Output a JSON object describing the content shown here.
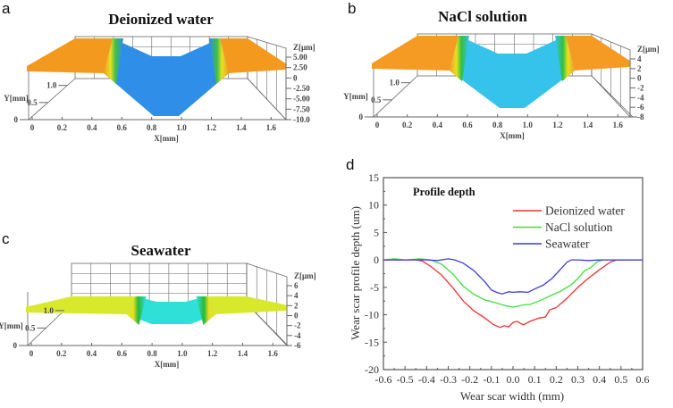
{
  "panels": {
    "a": {
      "letter": "a",
      "title": "Deionized water",
      "z_label": "Z[µm]",
      "z_ticks": [
        "5.00",
        "2.50",
        "0",
        "-2.50",
        "-5.00",
        "-7.50",
        "-10.0"
      ],
      "y_label": "Y[mm]",
      "y_ticks": [
        "0",
        "0.5",
        "1.0"
      ],
      "x_label": "X[mm]",
      "x_ticks": [
        "0",
        "0.2",
        "0.4",
        "0.6",
        "0.8",
        "1.0",
        "1.2",
        "1.4",
        "1.6"
      ],
      "surface_colors": {
        "top": "#f39a1e",
        "wall": "#3fbf4a",
        "bottom": "#2f8ee8"
      }
    },
    "b": {
      "letter": "b",
      "title": "NaCl solution",
      "z_label": "Z[µm]",
      "z_ticks": [
        "4",
        "2",
        "0",
        "-2",
        "-4",
        "-6",
        "-8"
      ],
      "y_label": "Y[mm]",
      "y_ticks": [
        "0",
        "0.5",
        "1.0"
      ],
      "x_label": "X[mm]",
      "x_ticks": [
        "0",
        "0.2",
        "0.4",
        "0.6",
        "0.8",
        "1.0",
        "1.2",
        "1.4",
        "1.6"
      ],
      "surface_colors": {
        "top": "#f59a22",
        "wall": "#32c040",
        "bottom": "#35c3ec"
      }
    },
    "c": {
      "letter": "c",
      "title": "Seawater",
      "z_label": "Z[µm]",
      "z_ticks": [
        "6",
        "4",
        "2",
        "0",
        "-2",
        "-4",
        "-6"
      ],
      "y_label": "Y[mm]",
      "y_ticks": [
        "0",
        "0.5",
        "1.0"
      ],
      "x_label": "X[mm]",
      "x_ticks": [
        "0",
        "0.2",
        "0.4",
        "0.6",
        "0.8",
        "1.0",
        "1.2",
        "1.4",
        "1.6"
      ],
      "surface_colors": {
        "top": "#d8e82a",
        "wall": "#28b83a",
        "bottom": "#2fe0d8"
      }
    },
    "d": {
      "letter": "d"
    }
  },
  "chart_data": {
    "type": "line",
    "title": "",
    "annotation": "Profile depth",
    "xlabel": "Wear scar width (mm)",
    "ylabel": "Wear scar profile depth (um)",
    "xlim": [
      -0.6,
      0.6
    ],
    "ylim": [
      -20,
      15
    ],
    "x_ticks": [
      "-0.6",
      "-0.5",
      "-0.4",
      "-0.3",
      "-0.2",
      "-0.1",
      "0.0",
      "0.1",
      "0.2",
      "0.3",
      "0.4",
      "0.5",
      "0.6"
    ],
    "y_ticks": [
      "15",
      "10",
      "5",
      "0",
      "-5",
      "-10",
      "-15",
      "-20"
    ],
    "legend_position": "top-right",
    "grid": false,
    "series": [
      {
        "name": "Deionized water",
        "color": "#f03030",
        "x": [
          -0.6,
          -0.5,
          -0.45,
          -0.42,
          -0.38,
          -0.33,
          -0.28,
          -0.23,
          -0.18,
          -0.13,
          -0.09,
          -0.06,
          -0.04,
          -0.02,
          0.0,
          0.02,
          0.04,
          0.05,
          0.08,
          0.12,
          0.15,
          0.17,
          0.2,
          0.25,
          0.3,
          0.35,
          0.4,
          0.45,
          0.48,
          0.5,
          0.6
        ],
        "y": [
          0,
          0,
          0,
          -0.2,
          -1.2,
          -2.8,
          -5.0,
          -7.5,
          -9.3,
          -10.6,
          -11.8,
          -12.3,
          -12.0,
          -12.2,
          -11.4,
          -11.2,
          -11.7,
          -11.8,
          -11.2,
          -10.6,
          -10.4,
          -9.1,
          -8.7,
          -7.0,
          -5.0,
          -3.3,
          -1.8,
          -0.4,
          0,
          0,
          0
        ]
      },
      {
        "name": "NaCl solution",
        "color": "#3ee03e",
        "x": [
          -0.6,
          -0.55,
          -0.5,
          -0.43,
          -0.38,
          -0.33,
          -0.28,
          -0.23,
          -0.18,
          -0.13,
          -0.08,
          -0.03,
          0.0,
          0.05,
          0.08,
          0.12,
          0.18,
          0.22,
          0.27,
          0.3,
          0.33,
          0.36,
          0.39,
          0.42,
          0.5,
          0.6
        ],
        "y": [
          0,
          0.2,
          0,
          0.2,
          0,
          -0.8,
          -2.5,
          -4.8,
          -6.3,
          -7.3,
          -7.8,
          -8.4,
          -8.6,
          -8.2,
          -8.1,
          -7.5,
          -6.4,
          -5.7,
          -4.5,
          -3.4,
          -2.0,
          -1.4,
          -0.3,
          0,
          0,
          0
        ]
      },
      {
        "name": "Seawater",
        "color": "#3a3aea",
        "x": [
          -0.6,
          -0.4,
          -0.35,
          -0.3,
          -0.27,
          -0.23,
          -0.18,
          -0.13,
          -0.1,
          -0.07,
          -0.05,
          -0.02,
          0.0,
          0.03,
          0.07,
          0.1,
          0.14,
          0.18,
          0.22,
          0.25,
          0.27,
          0.3,
          0.35,
          0.4,
          0.6
        ],
        "y": [
          0,
          0,
          -0.1,
          0.2,
          0.0,
          -0.6,
          -2.0,
          -4.0,
          -5.5,
          -6.0,
          -6.2,
          -5.8,
          -5.9,
          -5.8,
          -5.9,
          -5.3,
          -4.6,
          -3.4,
          -1.7,
          -0.4,
          0.0,
          0.0,
          -0.1,
          0,
          0
        ]
      }
    ]
  }
}
